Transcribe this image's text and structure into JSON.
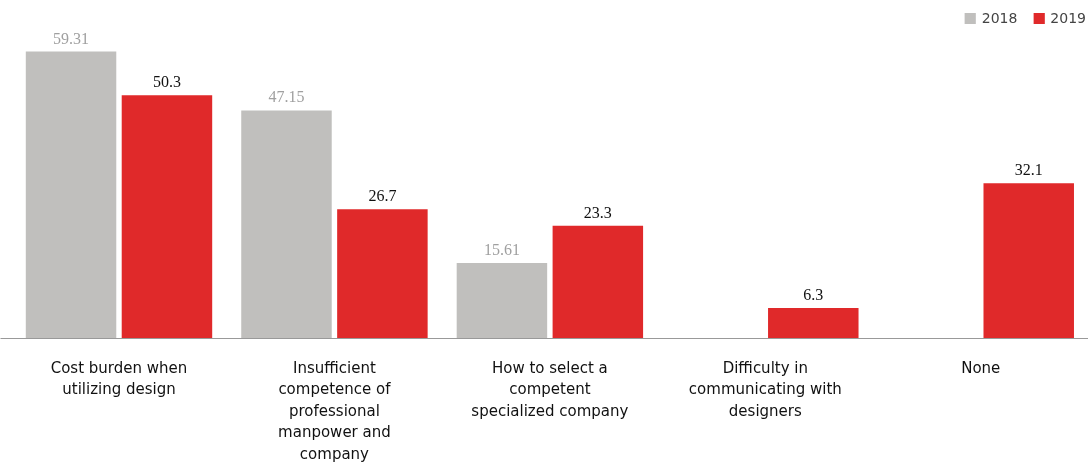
{
  "chart_data": {
    "type": "bar",
    "categories": [
      "Cost burden when\nutilizing design",
      "Insufficient\ncompetence of\nprofessional\nmanpower and\ncompany",
      "How to select a\ncompetent\nspecialized company",
      "Difficulty in\ncommunicating with\ndesigners",
      "None"
    ],
    "series": [
      {
        "name": "2018",
        "color": "#c0bfbd",
        "values": [
          59.31,
          47.15,
          15.61,
          null,
          null
        ]
      },
      {
        "name": "2019",
        "color": "#e0292a",
        "values": [
          50.3,
          26.7,
          23.3,
          6.3,
          32.1
        ]
      }
    ],
    "data_labels": true,
    "legend": "top right",
    "grid": false
  }
}
